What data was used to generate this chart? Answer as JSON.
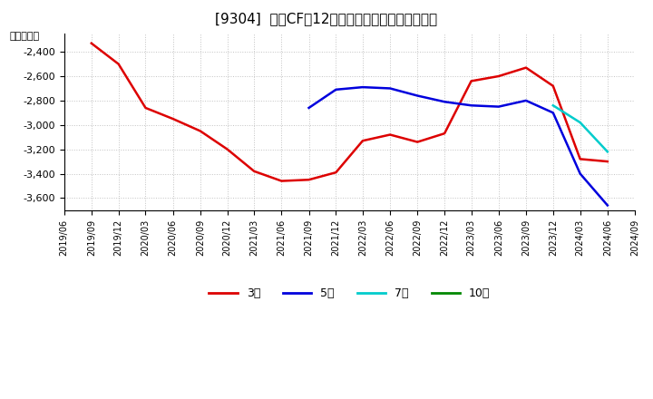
{
  "title": "[9304]  投資CFの12か月移動合計の平均値の推移",
  "ylabel": "（百万円）",
  "ylim": [
    -3700,
    -2250
  ],
  "yticks": [
    -3600,
    -3400,
    -3200,
    -3000,
    -2800,
    -2600,
    -2400
  ],
  "background_color": "#ffffff",
  "grid_color": "#bbbbbb",
  "series": {
    "3year": {
      "color": "#dd0000",
      "label": "3年",
      "dates": [
        "2019-09",
        "2019-12",
        "2020-03",
        "2020-06",
        "2020-09",
        "2020-12",
        "2021-03",
        "2021-06",
        "2021-09",
        "2021-12",
        "2022-03",
        "2022-06",
        "2022-09",
        "2022-12",
        "2023-03",
        "2023-06",
        "2023-09",
        "2023-12",
        "2024-03",
        "2024-06"
      ],
      "values": [
        -2330,
        -2500,
        -2860,
        -2950,
        -3050,
        -3200,
        -3380,
        -3460,
        -3450,
        -3390,
        -3130,
        -3080,
        -3140,
        -3070,
        -2640,
        -2600,
        -2530,
        -2680,
        -3280,
        -3300
      ]
    },
    "5year": {
      "color": "#0000dd",
      "label": "5年",
      "dates": [
        "2021-09",
        "2021-12",
        "2022-03",
        "2022-06",
        "2022-09",
        "2022-12",
        "2023-03",
        "2023-06",
        "2023-09",
        "2023-12",
        "2024-03",
        "2024-06"
      ],
      "values": [
        -2860,
        -2710,
        -2690,
        -2700,
        -2760,
        -2810,
        -2840,
        -2850,
        -2800,
        -2900,
        -3400,
        -3660
      ]
    },
    "7year": {
      "color": "#00cccc",
      "label": "7年",
      "dates": [
        "2023-12",
        "2024-03",
        "2024-06"
      ],
      "values": [
        -2840,
        -2980,
        -3220
      ]
    },
    "10year": {
      "color": "#008800",
      "label": "10年",
      "dates": [],
      "values": []
    }
  },
  "legend": {
    "line_colors": [
      "#dd0000",
      "#0000dd",
      "#00cccc",
      "#008800"
    ],
    "labels": [
      "3年",
      "5年",
      "7年",
      "10年"
    ]
  }
}
